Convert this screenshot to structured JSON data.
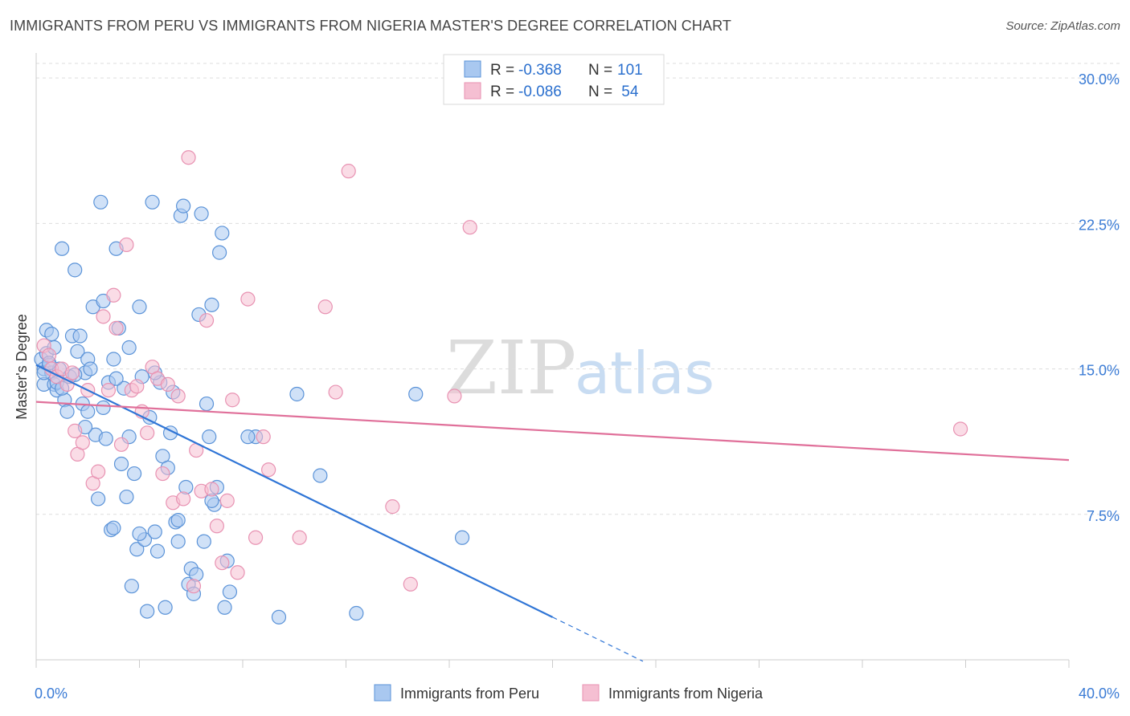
{
  "title": "IMMIGRANTS FROM PERU VS IMMIGRANTS FROM NIGERIA MASTER'S DEGREE CORRELATION CHART",
  "source": "Source: ZipAtlas.com",
  "watermark": {
    "zip": "ZIP",
    "atlas": "atlas"
  },
  "legend": {
    "rows": [
      {
        "r_label": "R =",
        "r_value": "-0.368",
        "n_label": "N =",
        "n_value": "101"
      },
      {
        "r_label": "R =",
        "r_value": "-0.086",
        "n_label": "N =",
        "n_value": " 54"
      }
    ]
  },
  "colors": {
    "peru_fill": "#a9c8f0",
    "peru_stroke": "#5b93d8",
    "peru_line": "#2f75d6",
    "nigeria_fill": "#f5bfd2",
    "nigeria_stroke": "#e892b2",
    "nigeria_line": "#e0709a",
    "grid": "#dddddd",
    "tick_text": "#3a7bd5"
  },
  "chart_data": {
    "type": "scatter",
    "title": "IMMIGRANTS FROM PERU VS IMMIGRANTS FROM NIGERIA MASTER'S DEGREE CORRELATION CHART",
    "xlabel": "",
    "ylabel": "Master's Degree",
    "xlim": [
      0,
      40
    ],
    "ylim": [
      0,
      31
    ],
    "x_tick_labels": [
      "0.0%",
      "40.0%"
    ],
    "y_ticks": [
      7.5,
      15.0,
      22.5,
      30.0
    ],
    "y_tick_labels": [
      "7.5%",
      "15.0%",
      "22.5%",
      "30.0%"
    ],
    "grid": true,
    "legend_position": "top-center",
    "series": [
      {
        "name": "Immigrants from Peru",
        "trend": {
          "x0": 0,
          "y0": 15.2,
          "x1": 20,
          "y1": 2.2,
          "dash_to_x": 23.5
        },
        "points": [
          [
            0.2,
            15.5
          ],
          [
            0.3,
            15.0
          ],
          [
            0.3,
            14.2
          ],
          [
            0.4,
            17.0
          ],
          [
            0.4,
            15.8
          ],
          [
            0.5,
            15.2
          ],
          [
            0.6,
            14.8
          ],
          [
            0.7,
            14.2
          ],
          [
            0.8,
            13.9
          ],
          [
            0.9,
            15.0
          ],
          [
            0.6,
            16.8
          ],
          [
            1.0,
            21.2
          ],
          [
            1.1,
            13.4
          ],
          [
            1.2,
            12.8
          ],
          [
            1.3,
            14.6
          ],
          [
            1.4,
            16.7
          ],
          [
            1.5,
            20.1
          ],
          [
            1.6,
            15.9
          ],
          [
            1.7,
            16.7
          ],
          [
            1.8,
            13.2
          ],
          [
            1.9,
            14.8
          ],
          [
            2.0,
            15.5
          ],
          [
            2.1,
            15.0
          ],
          [
            2.2,
            18.2
          ],
          [
            2.3,
            11.6
          ],
          [
            2.4,
            8.3
          ],
          [
            2.5,
            23.6
          ],
          [
            2.6,
            18.5
          ],
          [
            2.7,
            11.4
          ],
          [
            2.8,
            14.3
          ],
          [
            2.9,
            6.7
          ],
          [
            3.0,
            15.5
          ],
          [
            3.1,
            21.2
          ],
          [
            3.2,
            17.1
          ],
          [
            3.3,
            10.1
          ],
          [
            3.4,
            14.0
          ],
          [
            3.5,
            8.4
          ],
          [
            3.6,
            16.1
          ],
          [
            3.7,
            3.8
          ],
          [
            3.8,
            9.6
          ],
          [
            3.9,
            5.7
          ],
          [
            4.0,
            18.2
          ],
          [
            4.1,
            14.6
          ],
          [
            4.2,
            6.2
          ],
          [
            4.3,
            2.5
          ],
          [
            4.4,
            12.5
          ],
          [
            4.5,
            23.6
          ],
          [
            4.6,
            6.6
          ],
          [
            4.7,
            5.6
          ],
          [
            4.8,
            14.3
          ],
          [
            4.9,
            10.5
          ],
          [
            5.0,
            2.7
          ],
          [
            5.1,
            9.9
          ],
          [
            5.2,
            11.7
          ],
          [
            5.3,
            13.8
          ],
          [
            5.4,
            7.1
          ],
          [
            5.5,
            6.1
          ],
          [
            5.6,
            22.9
          ],
          [
            5.7,
            23.4
          ],
          [
            5.8,
            8.9
          ],
          [
            5.9,
            3.9
          ],
          [
            6.0,
            4.7
          ],
          [
            6.1,
            3.4
          ],
          [
            6.2,
            4.4
          ],
          [
            6.3,
            17.8
          ],
          [
            6.4,
            23.0
          ],
          [
            6.5,
            6.1
          ],
          [
            6.6,
            13.2
          ],
          [
            6.7,
            11.5
          ],
          [
            6.8,
            18.3
          ],
          [
            6.9,
            8.0
          ],
          [
            7.0,
            8.9
          ],
          [
            7.1,
            21.0
          ],
          [
            7.2,
            22.0
          ],
          [
            7.3,
            2.7
          ],
          [
            7.4,
            5.1
          ],
          [
            7.5,
            3.5
          ],
          [
            8.5,
            11.5
          ],
          [
            9.4,
            2.2
          ],
          [
            10.1,
            13.7
          ],
          [
            11.0,
            9.5
          ],
          [
            12.4,
            2.4
          ],
          [
            14.7,
            13.7
          ],
          [
            16.5,
            6.3
          ],
          [
            0.3,
            14.8
          ],
          [
            0.5,
            15.3
          ],
          [
            0.8,
            14.3
          ],
          [
            1.0,
            14.0
          ],
          [
            1.5,
            14.7
          ],
          [
            2.0,
            12.8
          ],
          [
            2.6,
            13.0
          ],
          [
            3.1,
            14.5
          ],
          [
            3.6,
            11.5
          ],
          [
            4.6,
            14.8
          ],
          [
            5.5,
            7.2
          ],
          [
            6.8,
            8.2
          ],
          [
            0.7,
            16.1
          ],
          [
            1.9,
            12.0
          ],
          [
            3.0,
            6.8
          ],
          [
            4.0,
            6.5
          ],
          [
            8.2,
            11.5
          ]
        ]
      },
      {
        "name": "Immigrants from Nigeria",
        "trend": {
          "x0": 0,
          "y0": 13.3,
          "x1": 40,
          "y1": 10.3
        },
        "points": [
          [
            0.3,
            16.2
          ],
          [
            0.5,
            15.7
          ],
          [
            0.6,
            15.0
          ],
          [
            0.8,
            14.6
          ],
          [
            1.0,
            15.0
          ],
          [
            1.2,
            14.2
          ],
          [
            1.4,
            14.8
          ],
          [
            1.5,
            11.8
          ],
          [
            1.6,
            10.6
          ],
          [
            1.8,
            11.2
          ],
          [
            2.0,
            13.9
          ],
          [
            2.2,
            9.1
          ],
          [
            2.4,
            9.7
          ],
          [
            2.6,
            17.7
          ],
          [
            2.8,
            13.9
          ],
          [
            3.0,
            18.8
          ],
          [
            3.1,
            17.1
          ],
          [
            3.3,
            11.1
          ],
          [
            3.5,
            21.4
          ],
          [
            3.7,
            13.9
          ],
          [
            3.9,
            14.1
          ],
          [
            4.1,
            12.8
          ],
          [
            4.3,
            11.7
          ],
          [
            4.5,
            15.1
          ],
          [
            4.7,
            14.5
          ],
          [
            4.9,
            9.6
          ],
          [
            5.1,
            14.2
          ],
          [
            5.3,
            8.1
          ],
          [
            5.5,
            13.6
          ],
          [
            5.7,
            8.3
          ],
          [
            5.9,
            25.9
          ],
          [
            6.1,
            3.8
          ],
          [
            6.2,
            10.8
          ],
          [
            6.4,
            8.7
          ],
          [
            6.6,
            17.5
          ],
          [
            6.8,
            8.8
          ],
          [
            7.0,
            6.9
          ],
          [
            7.2,
            5.0
          ],
          [
            7.4,
            8.2
          ],
          [
            7.6,
            13.4
          ],
          [
            7.8,
            4.5
          ],
          [
            8.2,
            18.6
          ],
          [
            8.5,
            6.3
          ],
          [
            8.8,
            11.5
          ],
          [
            9.0,
            9.8
          ],
          [
            10.2,
            6.3
          ],
          [
            11.2,
            18.2
          ],
          [
            11.6,
            13.8
          ],
          [
            12.1,
            25.2
          ],
          [
            13.8,
            7.9
          ],
          [
            14.5,
            3.9
          ],
          [
            16.2,
            13.6
          ],
          [
            16.8,
            22.3
          ],
          [
            35.8,
            11.9
          ]
        ]
      }
    ]
  },
  "bottom_legend": [
    {
      "label": "Immigrants from Peru"
    },
    {
      "label": "Immigrants from Nigeria"
    }
  ]
}
